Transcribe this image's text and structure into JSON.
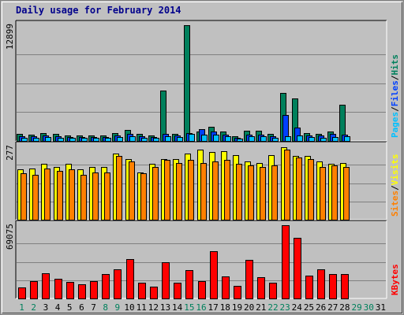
{
  "chart_data": {
    "type": "bar",
    "title": "Daily usage for February 2014",
    "categories": [
      "1",
      "2",
      "3",
      "4",
      "5",
      "6",
      "7",
      "8",
      "9",
      "10",
      "11",
      "12",
      "13",
      "14",
      "15",
      "16",
      "17",
      "18",
      "19",
      "20",
      "21",
      "22",
      "23",
      "24",
      "25",
      "26",
      "27",
      "28",
      "29",
      "30",
      "31"
    ],
    "weekend_days": [
      "1",
      "2",
      "8",
      "9",
      "15",
      "16",
      "22",
      "23",
      "29",
      "30"
    ],
    "colors": {
      "background": "#c0c0c0",
      "plot": "#c0c0c0",
      "title": "#00008b",
      "hits": "#00805c",
      "files": "#0040ff",
      "pages": "#00c0ff",
      "visits": "#ffff00",
      "sites": "#ff8000",
      "kbytes": "#ff0000",
      "weekday_label": "#000000",
      "weekend_label": "#00805c"
    },
    "panels": [
      {
        "id": "top",
        "max_label": "12899",
        "ylim": [
          0,
          12899
        ],
        "legend": [
          {
            "label": "Pages",
            "color": "#00c0ff"
          },
          {
            "label": "/",
            "color": "#000000"
          },
          {
            "label": "Files",
            "color": "#0040ff"
          },
          {
            "label": "/",
            "color": "#000000"
          },
          {
            "label": "Hits",
            "color": "#00805c"
          }
        ],
        "series": [
          {
            "name": "Hits",
            "color": "#00805c",
            "values": [
              800,
              720,
              880,
              800,
              580,
              580,
              640,
              640,
              880,
              1250,
              800,
              640,
              5580,
              800,
              12899,
              1050,
              1550,
              1050,
              500,
              1130,
              1130,
              800,
              5360,
              4710,
              910,
              800,
              1070,
              4080,
              0,
              0,
              0
            ]
          },
          {
            "name": "Files",
            "color": "#0040ff",
            "values": [
              560,
              520,
              620,
              560,
              420,
              420,
              460,
              460,
              620,
              820,
              560,
              460,
              820,
              580,
              900,
              1280,
              1080,
              680,
              380,
              740,
              740,
              560,
              2880,
              1530,
              650,
              580,
              760,
              680,
              0,
              0,
              0
            ]
          },
          {
            "name": "Pages",
            "color": "#00c0ff",
            "values": [
              380,
              360,
              420,
              380,
              320,
              320,
              340,
              340,
              420,
              500,
              380,
              340,
              520,
              400,
              820,
              700,
              680,
              500,
              300,
              520,
              520,
              380,
              560,
              620,
              420,
              380,
              460,
              520,
              0,
              0,
              0
            ]
          }
        ]
      },
      {
        "id": "middle",
        "max_label": "277",
        "ylim": [
          0,
          277
        ],
        "legend": [
          {
            "label": "Sites",
            "color": "#ff8000"
          },
          {
            "label": "/",
            "color": "#000000"
          },
          {
            "label": "Visits",
            "color": "#ffff00"
          }
        ],
        "series": [
          {
            "name": "Visits",
            "color": "#ffff00",
            "values": [
              190,
              195,
              210,
              200,
              210,
              190,
              200,
              200,
              250,
              230,
              180,
              210,
              230,
              230,
              250,
              265,
              255,
              260,
              245,
              220,
              215,
              245,
              275,
              240,
              240,
              220,
              210,
              215,
              0,
              0,
              0
            ]
          },
          {
            "name": "Sites",
            "color": "#ff8000",
            "values": [
              175,
              170,
              195,
              185,
              190,
              170,
              180,
              180,
              240,
              220,
              175,
              200,
              225,
              215,
              225,
              215,
              220,
              225,
              210,
              205,
              200,
              205,
              265,
              235,
              230,
              200,
              205,
              200,
              0,
              0,
              0
            ]
          }
        ]
      },
      {
        "id": "bottom",
        "max_label": "69075",
        "ylim": [
          0,
          69075
        ],
        "legend": [
          {
            "label": "KBytes",
            "color": "#ff0000"
          }
        ],
        "series": [
          {
            "name": "KBytes",
            "color": "#ff0000",
            "values": [
              10400,
              16500,
              23800,
              18800,
              15500,
              13500,
              16500,
              23000,
              27500,
              36800,
              15000,
              11300,
              34300,
              14500,
              26800,
              16500,
              44200,
              20800,
              12000,
              36100,
              19800,
              14500,
              69075,
              57000,
              21300,
              27800,
              23000,
              23300,
              0,
              0,
              0
            ]
          }
        ]
      }
    ]
  }
}
